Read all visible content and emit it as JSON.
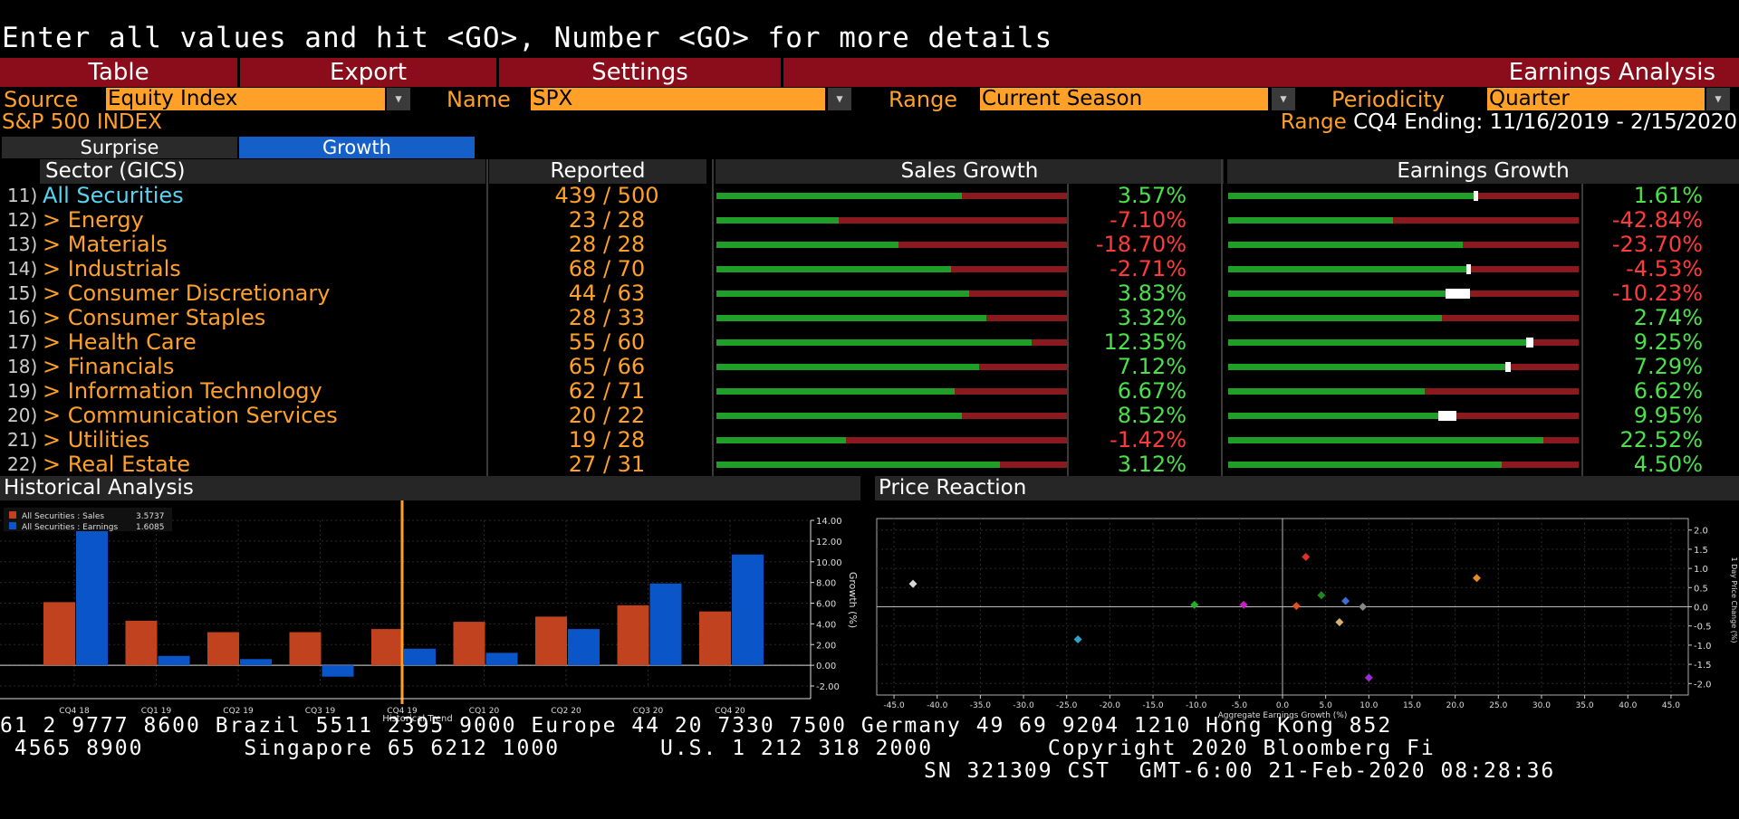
{
  "command_line": "Enter all values and hit <GO>, Number <GO> for more details",
  "menu": {
    "items": [
      "Table",
      "Export",
      "Settings"
    ],
    "title": "Earnings Analysis"
  },
  "fields": {
    "source_label": "Source",
    "source_value": "Equity Index",
    "name_label": "Name",
    "name_value": "SPX",
    "range_label": "Range",
    "range_value": "Current Season",
    "periodicity_label": "Periodicity",
    "periodicity_value": "Quarter"
  },
  "index_name": "S&P 500 INDEX",
  "range_info": {
    "label": "Range",
    "value": "CQ4 Ending: 11/16/2019 - 2/15/2020"
  },
  "tabs": {
    "surprise": "Surprise",
    "growth": "Growth",
    "active": "growth"
  },
  "table": {
    "headers": {
      "sector": "Sector (GICS)",
      "reported": "Reported",
      "sales": "Sales Growth",
      "earnings": "Earnings Growth"
    },
    "rows": [
      {
        "num": "11)",
        "name": "All Securities",
        "reported": "439 / 500",
        "sales": "3.57%",
        "earnings": "1.61%",
        "sales_fill": 0.7,
        "earn_fill": 0.7,
        "earn_marker": 0.013
      },
      {
        "num": "12)",
        "name": "> Energy",
        "reported": "23 / 28",
        "sales": "-7.10%",
        "earnings": "-42.84%",
        "sales_fill": 0.35,
        "earn_fill": 0.47
      },
      {
        "num": "13)",
        "name": "> Materials",
        "reported": "28 / 28",
        "sales": "-18.70%",
        "earnings": "-23.70%",
        "sales_fill": 0.52,
        "earn_fill": 0.67
      },
      {
        "num": "14)",
        "name": "> Industrials",
        "reported": "68 / 70",
        "sales": "-2.71%",
        "earnings": "-4.53%",
        "sales_fill": 0.67,
        "earn_fill": 0.68,
        "earn_marker": 0.013
      },
      {
        "num": "15)",
        "name": "> Consumer Discretionary",
        "reported": "44 / 63",
        "sales": "3.83%",
        "earnings": "-10.23%",
        "sales_fill": 0.72,
        "earn_fill": 0.62,
        "earn_marker": 0.07
      },
      {
        "num": "16)",
        "name": "> Consumer Staples",
        "reported": "28 / 33",
        "sales": "3.32%",
        "earnings": "2.74%",
        "sales_fill": 0.77,
        "earn_fill": 0.61
      },
      {
        "num": "17)",
        "name": "> Health Care",
        "reported": "55 / 60",
        "sales": "12.35%",
        "earnings": "9.25%",
        "sales_fill": 0.9,
        "earn_fill": 0.85,
        "earn_marker": 0.02
      },
      {
        "num": "18)",
        "name": "> Financials",
        "reported": "65 / 66",
        "sales": "7.12%",
        "earnings": "7.29%",
        "sales_fill": 0.75,
        "earn_fill": 0.79,
        "earn_marker": 0.015
      },
      {
        "num": "19)",
        "name": "> Information Technology",
        "reported": "62 / 71",
        "sales": "6.67%",
        "earnings": "6.62%",
        "sales_fill": 0.68,
        "earn_fill": 0.56
      },
      {
        "num": "20)",
        "name": "> Communication Services",
        "reported": "20 / 22",
        "sales": "8.52%",
        "earnings": "9.95%",
        "sales_fill": 0.7,
        "earn_fill": 0.6,
        "earn_marker": 0.05
      },
      {
        "num": "21)",
        "name": "> Utilities",
        "reported": "19 / 28",
        "sales": "-1.42%",
        "earnings": "22.52%",
        "sales_fill": 0.37,
        "earn_fill": 0.9
      },
      {
        "num": "22)",
        "name": "> Real Estate",
        "reported": "27 / 31",
        "sales": "3.12%",
        "earnings": "4.50%",
        "sales_fill": 0.81,
        "earn_fill": 0.78
      }
    ]
  },
  "historical": {
    "title": "Historical Analysis",
    "legend": [
      {
        "name": "All Securities : Sales",
        "value": "3.5737",
        "color": "#c0421e"
      },
      {
        "name": "All Securities : Earnings",
        "value": "1.6085",
        "color": "#0a55c8"
      }
    ],
    "chart_data": {
      "type": "bar",
      "categories": [
        "CQ4 18",
        "CQ1 19",
        "CQ2 19",
        "CQ3 19",
        "CQ4 19",
        "CQ1 20",
        "CQ2 20",
        "CQ3 20",
        "CQ4 20"
      ],
      "series": [
        {
          "name": "All Securities : Sales",
          "values": [
            6.1,
            4.3,
            3.2,
            3.2,
            3.5,
            4.2,
            4.7,
            5.8,
            5.2
          ]
        },
        {
          "name": "All Securities : Earnings",
          "values": [
            14.2,
            0.9,
            0.6,
            -1.1,
            1.6,
            1.2,
            3.5,
            7.9,
            10.7
          ]
        }
      ],
      "yticks": [
        "14.00",
        "12.00",
        "10.00",
        "8.00",
        "6.00",
        "4.00",
        "2.00",
        "0.00",
        "-2.00"
      ],
      "ylim": [
        -2,
        14
      ],
      "ylabel": "Growth (%)",
      "xlabel": "Historical Trend",
      "highlight": "CQ4 19"
    }
  },
  "price_reaction": {
    "title": "Price Reaction",
    "chart_data": {
      "type": "scatter",
      "xlabel": "Aggregate Earnings Growth (%)",
      "ylabel": "1 Day Price Change (%)",
      "xticks": [
        "-45.0",
        "-40.0",
        "-35.0",
        "-30.0",
        "-25.0",
        "-20.0",
        "-15.0",
        "-10.0",
        "-5.0",
        "0.0",
        "5.0",
        "10.0",
        "15.0",
        "20.0",
        "25.0",
        "30.0",
        "35.0",
        "40.0",
        "45.0"
      ],
      "yticks": [
        "2.0",
        "1.5",
        "1.0",
        "0.5",
        "0.0",
        "-0.5",
        "-1.0",
        "-1.5",
        "-2.0"
      ],
      "xlim": [
        -47,
        47
      ],
      "ylim": [
        -2.3,
        2.3
      ],
      "points": [
        {
          "x": -42.8,
          "y": 0.6,
          "color": "#d8d8d8"
        },
        {
          "x": -23.7,
          "y": -0.85,
          "color": "#2aa4c8"
        },
        {
          "x": -10.2,
          "y": 0.05,
          "color": "#22b02a"
        },
        {
          "x": -4.5,
          "y": 0.05,
          "color": "#c81ec8"
        },
        {
          "x": 1.6,
          "y": 0.02,
          "color": "#e05020"
        },
        {
          "x": 2.7,
          "y": 1.3,
          "color": "#e0302a"
        },
        {
          "x": 4.5,
          "y": 0.3,
          "color": "#1e8a1e"
        },
        {
          "x": 6.6,
          "y": -0.4,
          "color": "#d4b46e"
        },
        {
          "x": 7.3,
          "y": 0.15,
          "color": "#3c6ed8"
        },
        {
          "x": 9.3,
          "y": 0.0,
          "color": "#888888"
        },
        {
          "x": 10.0,
          "y": -1.85,
          "color": "#9b2ad8"
        },
        {
          "x": 22.5,
          "y": 0.75,
          "color": "#e08a28"
        }
      ]
    }
  },
  "ticker": {
    "line1": "61 2 9777 8600 Brazil 5511 2395 9000 Europe 44 20 7330 7500 Germany 49 69 9204 1210 Hong Kong 852",
    "line2": " 4565 8900       Singapore 65 6212 1000       U.S. 1 212 318 2000        Copyright 2020 Bloomberg Fi",
    "line3": "SN 321309 CST  GMT-6:00 21-Feb-2020 08:28:36"
  }
}
